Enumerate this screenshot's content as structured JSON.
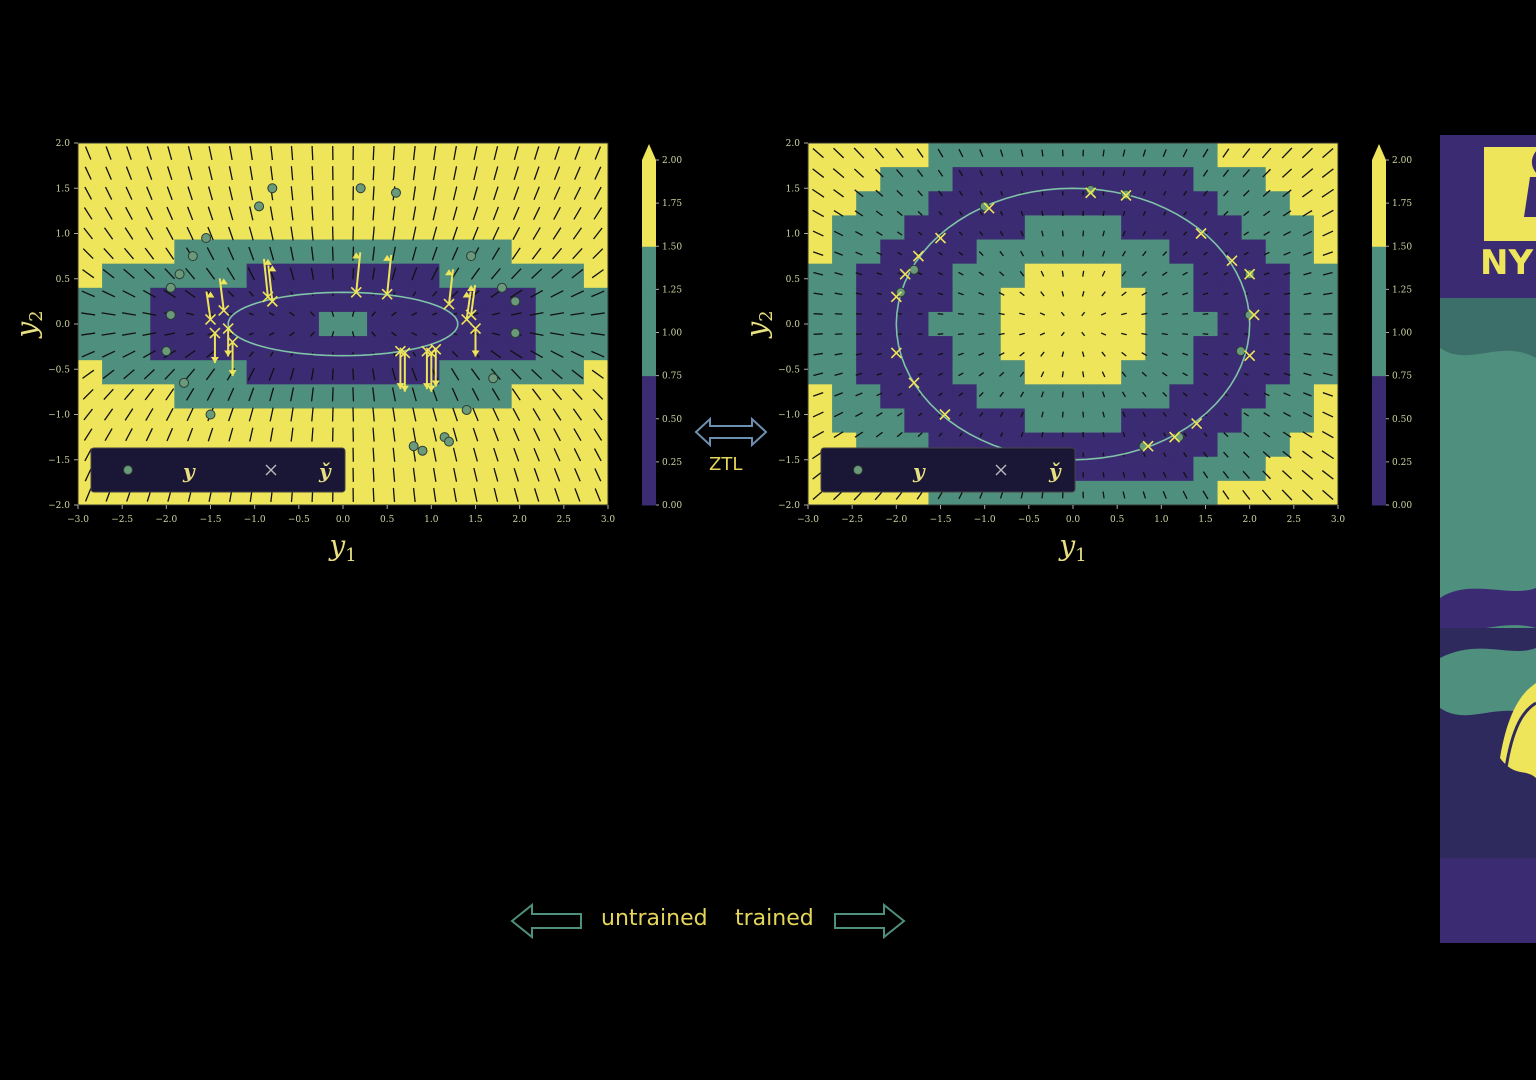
{
  "colors": {
    "yellow": "#efe55a",
    "teal": "#4f8f7e",
    "purple": "#3b2b72",
    "accent_text": "#e5d55a",
    "arrow_outline": "#4f8f7e"
  },
  "chart_data": [
    {
      "type": "heatmap",
      "title": "",
      "xlabel": "y_1",
      "ylabel": "y_2",
      "xlim": [
        -3.0,
        3.0
      ],
      "ylim": [
        -2.0,
        2.0
      ],
      "xticks": [
        "−3.0",
        "−2.5",
        "−2.0",
        "−1.5",
        "−1.0",
        "−0.5",
        "0.0",
        "0.5",
        "1.0",
        "1.5",
        "2.0",
        "2.5",
        "3.0"
      ],
      "yticks": [
        "−2.0",
        "−1.5",
        "−1.0",
        "−0.5",
        "0.0",
        "0.5",
        "1.0",
        "1.5",
        "2.0"
      ],
      "colorbar_ticks": [
        "0.00",
        "0.25",
        "0.50",
        "0.75",
        "1.00",
        "1.25",
        "1.50",
        "1.75",
        "2.00"
      ],
      "colorbar_range": [
        0,
        2
      ],
      "curve": {
        "a": 1.3,
        "b": 0.35
      },
      "legend": {
        "placement": "lower-left",
        "entries": [
          "y",
          "y̌"
        ]
      },
      "points_y": [
        [
          -0.8,
          1.5
        ],
        [
          -0.95,
          1.3
        ],
        [
          0.2,
          1.5
        ],
        [
          0.6,
          1.45
        ],
        [
          -1.55,
          0.95
        ],
        [
          -1.7,
          0.75
        ],
        [
          -1.85,
          0.55
        ],
        [
          -1.95,
          0.4
        ],
        [
          -1.95,
          0.1
        ],
        [
          -2.0,
          -0.3
        ],
        [
          -1.8,
          -0.65
        ],
        [
          -1.5,
          -1.0
        ],
        [
          1.45,
          0.75
        ],
        [
          1.8,
          0.4
        ],
        [
          1.95,
          0.25
        ],
        [
          1.95,
          -0.1
        ],
        [
          1.7,
          -0.6
        ],
        [
          1.4,
          -0.95
        ],
        [
          1.15,
          -1.25
        ],
        [
          0.8,
          -1.35
        ],
        [
          0.9,
          -1.4
        ],
        [
          1.2,
          -1.3
        ]
      ],
      "points_x": [
        [
          -1.5,
          0.05
        ],
        [
          -1.45,
          -0.1
        ],
        [
          -1.3,
          -0.05
        ],
        [
          -1.35,
          0.15
        ],
        [
          -1.25,
          -0.2
        ],
        [
          -0.85,
          0.3
        ],
        [
          -0.8,
          0.25
        ],
        [
          0.15,
          0.35
        ],
        [
          0.5,
          0.33
        ],
        [
          1.2,
          0.22
        ],
        [
          1.45,
          0.1
        ],
        [
          1.5,
          -0.05
        ],
        [
          1.4,
          0.05
        ],
        [
          0.65,
          -0.3
        ],
        [
          0.7,
          -0.32
        ],
        [
          0.95,
          -0.3
        ],
        [
          1.05,
          -0.28
        ],
        [
          1.0,
          -0.32
        ]
      ]
    },
    {
      "type": "heatmap",
      "title": "",
      "xlabel": "y_1",
      "ylabel": "y_2",
      "xlim": [
        -3.0,
        3.0
      ],
      "ylim": [
        -2.0,
        2.0
      ],
      "xticks": [
        "−3.0",
        "−2.5",
        "−2.0",
        "−1.5",
        "−1.0",
        "−0.5",
        "0.0",
        "0.5",
        "1.0",
        "1.5",
        "2.0",
        "2.5",
        "3.0"
      ],
      "yticks": [
        "−2.0",
        "−1.5",
        "−1.0",
        "−0.5",
        "0.0",
        "0.5",
        "1.0",
        "1.5",
        "2.0"
      ],
      "colorbar_ticks": [
        "0.00",
        "0.25",
        "0.50",
        "0.75",
        "1.00",
        "1.25",
        "1.50",
        "1.75",
        "2.00"
      ],
      "colorbar_range": [
        0,
        2
      ],
      "curve": {
        "a": 2.0,
        "b": 1.5
      },
      "legend": {
        "placement": "lower-left",
        "entries": [
          "y",
          "y̌"
        ]
      },
      "points_y": [
        [
          -1.0,
          1.3
        ],
        [
          0.2,
          1.48
        ],
        [
          0.6,
          1.43
        ],
        [
          -1.8,
          0.6
        ],
        [
          -1.95,
          0.35
        ],
        [
          2.0,
          0.55
        ],
        [
          2.0,
          0.1
        ],
        [
          1.9,
          -0.3
        ],
        [
          0.8,
          -1.35
        ],
        [
          1.2,
          -1.25
        ]
      ],
      "points_x": [
        [
          -0.95,
          1.28
        ],
        [
          0.2,
          1.45
        ],
        [
          0.6,
          1.42
        ],
        [
          1.45,
          1.0
        ],
        [
          1.8,
          0.7
        ],
        [
          2.0,
          0.55
        ],
        [
          2.05,
          0.1
        ],
        [
          2.0,
          -0.35
        ],
        [
          1.4,
          -1.1
        ],
        [
          1.15,
          -1.25
        ],
        [
          0.85,
          -1.35
        ],
        [
          -1.5,
          0.95
        ],
        [
          -1.75,
          0.75
        ],
        [
          -1.9,
          0.55
        ],
        [
          -2.0,
          0.3
        ],
        [
          -2.0,
          -0.32
        ],
        [
          -1.8,
          -0.65
        ],
        [
          -1.45,
          -1.0
        ]
      ]
    }
  ],
  "labels": {
    "ztl": "ZTL",
    "untrained": "untrained",
    "trained": "trained",
    "banner_logo": "NY"
  }
}
